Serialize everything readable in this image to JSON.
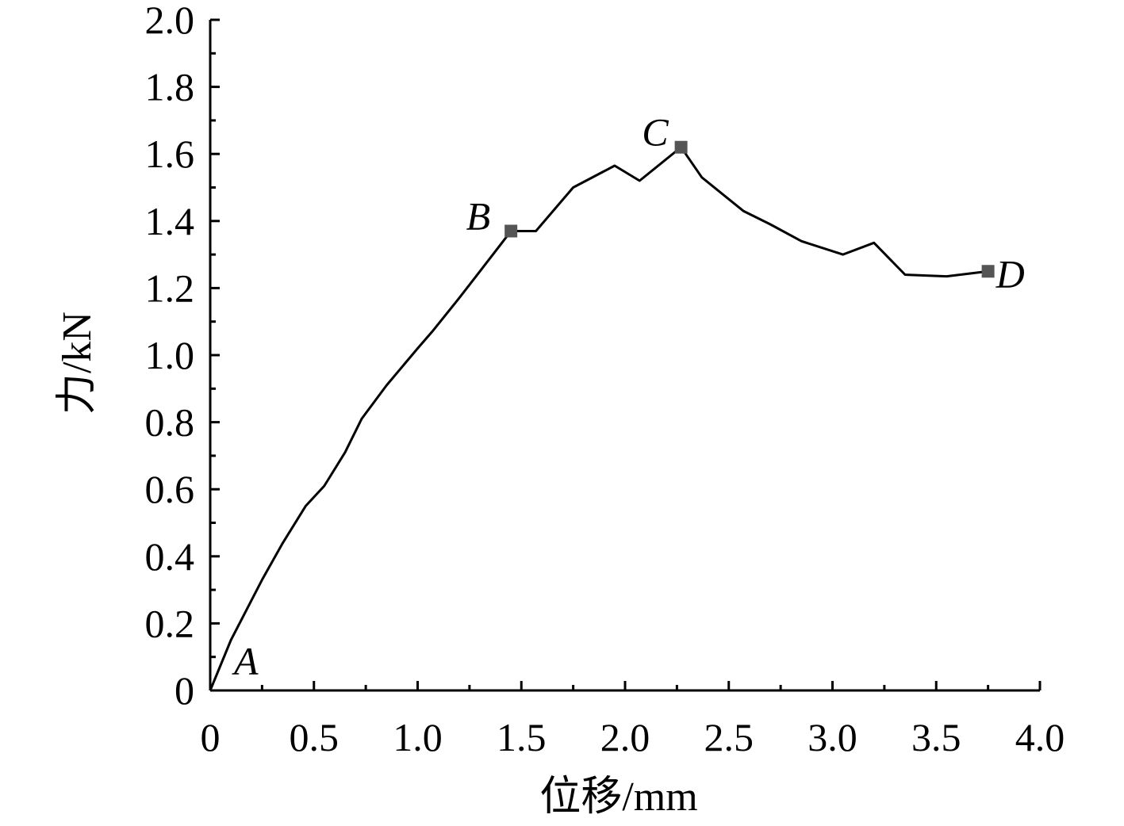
{
  "chart_data": {
    "type": "line",
    "title": "",
    "xlabel": "位移/mm",
    "ylabel": "力/kN",
    "xlim": [
      0,
      4.0
    ],
    "ylim": [
      0,
      2.0
    ],
    "x_ticks": [
      0,
      0.5,
      1.0,
      1.5,
      2.0,
      2.5,
      3.0,
      3.5,
      4.0
    ],
    "x_tick_labels": [
      "0",
      "0.5",
      "1.0",
      "1.5",
      "2.0",
      "2.5",
      "3.0",
      "3.5",
      "4.0"
    ],
    "y_ticks": [
      0,
      0.2,
      0.4,
      0.6,
      0.8,
      1.0,
      1.2,
      1.4,
      1.6,
      1.8,
      2.0
    ],
    "y_tick_labels": [
      "0",
      "0.2",
      "0.4",
      "0.6",
      "0.8",
      "1.0",
      "1.2",
      "1.4",
      "1.6",
      "1.8",
      "2.0"
    ],
    "grid": false,
    "colors": {
      "line": "#000000",
      "marker": "#555555"
    },
    "series": [
      {
        "x": [
          0,
          0.1,
          0.25,
          0.35,
          0.46,
          0.55,
          0.65,
          0.73,
          0.85,
          1.0,
          1.07,
          1.2,
          1.3,
          1.45,
          1.57,
          1.75,
          1.95,
          2.07,
          2.27,
          2.37,
          2.57,
          2.7,
          2.85,
          3.05,
          3.2,
          3.35,
          3.55,
          3.75
        ],
        "y": [
          0,
          0.15,
          0.33,
          0.44,
          0.55,
          0.61,
          0.71,
          0.81,
          0.91,
          1.02,
          1.07,
          1.17,
          1.25,
          1.37,
          1.37,
          1.5,
          1.565,
          1.52,
          1.62,
          1.53,
          1.43,
          1.39,
          1.34,
          1.3,
          1.335,
          1.24,
          1.235,
          1.25
        ]
      }
    ],
    "points": [
      {
        "label": "A",
        "x": 0,
        "y": 0,
        "marker": false
      },
      {
        "label": "B",
        "x": 1.45,
        "y": 1.37,
        "marker": true
      },
      {
        "label": "C",
        "x": 2.27,
        "y": 1.62,
        "marker": true
      },
      {
        "label": "D",
        "x": 3.75,
        "y": 1.25,
        "marker": true
      }
    ]
  }
}
